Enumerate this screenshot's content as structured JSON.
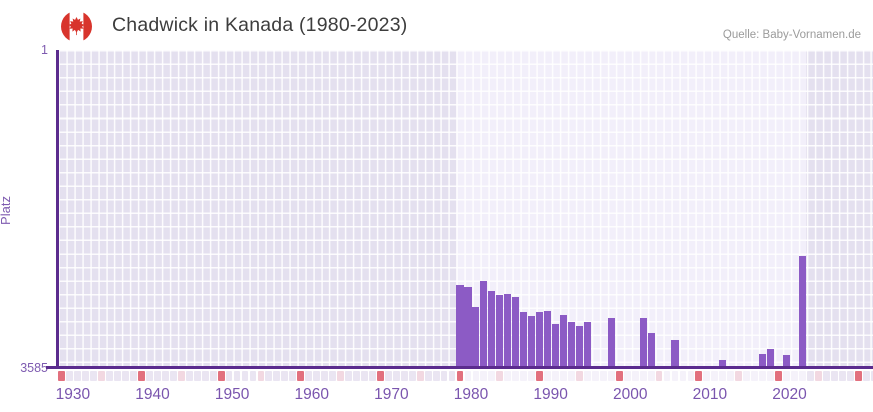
{
  "header": {
    "title": "Chadwick in Kanada (1980-2023)",
    "source": "Quelle: Baby-Vornamen.de",
    "flag_icon": "canada-flag-icon"
  },
  "chart_data": {
    "type": "bar",
    "title": "Chadwick in Kanada (1980-2023)",
    "xlabel": "",
    "ylabel": "Platz",
    "y_axis": {
      "top_label": "1",
      "bottom_label": "3585",
      "min": 1,
      "max": 3585,
      "inverted": true
    },
    "x_axis": {
      "ticks": [
        {
          "year": 1930,
          "label": "1930"
        },
        {
          "year": 1940,
          "label": "1940"
        },
        {
          "year": 1950,
          "label": "1950"
        },
        {
          "year": 1960,
          "label": "1960"
        },
        {
          "year": 1970,
          "label": "1970"
        },
        {
          "year": 1980,
          "label": "1980"
        },
        {
          "year": 1990,
          "label": "1990"
        },
        {
          "year": 2000,
          "label": "2000"
        },
        {
          "year": 2010,
          "label": "2010"
        },
        {
          "year": 2020,
          "label": "2020"
        }
      ],
      "strip_year_range": [
        1930,
        2032
      ],
      "decade_marker_interval": 10,
      "half_decade_marker_interval": 5
    },
    "highlight_year_range": [
      1980,
      2024
    ],
    "points": [
      {
        "year": 1980,
        "platz": 2655
      },
      {
        "year": 1981,
        "platz": 2675
      },
      {
        "year": 1982,
        "platz": 2900
      },
      {
        "year": 1983,
        "platz": 2605
      },
      {
        "year": 1984,
        "platz": 2720
      },
      {
        "year": 1985,
        "platz": 2765
      },
      {
        "year": 1986,
        "platz": 2755
      },
      {
        "year": 1987,
        "platz": 2785
      },
      {
        "year": 1988,
        "platz": 2955
      },
      {
        "year": 1989,
        "platz": 3005
      },
      {
        "year": 1990,
        "platz": 2955
      },
      {
        "year": 1991,
        "platz": 2945
      },
      {
        "year": 1992,
        "platz": 3095
      },
      {
        "year": 1993,
        "platz": 2995
      },
      {
        "year": 1994,
        "platz": 3070
      },
      {
        "year": 1995,
        "platz": 3115
      },
      {
        "year": 1996,
        "platz": 3070
      },
      {
        "year": 1999,
        "platz": 3025
      },
      {
        "year": 2003,
        "platz": 3025
      },
      {
        "year": 2004,
        "platz": 3190
      },
      {
        "year": 2007,
        "platz": 3270
      },
      {
        "year": 2013,
        "platz": 3500
      },
      {
        "year": 2018,
        "platz": 3430
      },
      {
        "year": 2019,
        "platz": 3380
      },
      {
        "year": 2021,
        "platz": 3440
      },
      {
        "year": 2023,
        "platz": 2325
      }
    ],
    "colors": {
      "bar": "#8c5bc5",
      "axis_line": "#5b2c8e",
      "plot_background": "#e4e0ef",
      "plot_background_highlight": "#f2effa",
      "strip_decade": "#e2707e",
      "strip_half_decade": "#f2d8e1",
      "strip_default": "#eae5f2",
      "strip_default_highlight": "#f5f2fa",
      "tick_label": "#7a55ae",
      "title_text": "#3d3d3d",
      "source_text": "#9b9b9b",
      "flag_red": "#d8342c"
    },
    "legend": null,
    "grid": true
  }
}
